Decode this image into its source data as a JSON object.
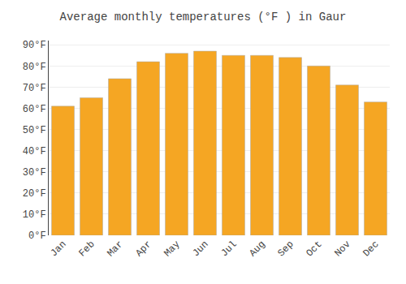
{
  "chart_data": {
    "type": "bar",
    "title": "Average monthly temperatures (°F ) in Gaur",
    "categories": [
      "Jan",
      "Feb",
      "Mar",
      "Apr",
      "May",
      "Jun",
      "Jul",
      "Aug",
      "Sep",
      "Oct",
      "Nov",
      "Dec"
    ],
    "values": [
      61,
      65,
      74,
      82,
      86,
      87,
      85,
      85,
      84,
      80,
      71,
      63
    ],
    "color": "#F5A623",
    "ylim": [
      0,
      92
    ],
    "yticks": [
      {
        "value": 0,
        "label": "0°F"
      },
      {
        "value": 10,
        "label": "10°F"
      },
      {
        "value": 20,
        "label": "20°F"
      },
      {
        "value": 30,
        "label": "30°F"
      },
      {
        "value": 40,
        "label": "40°F"
      },
      {
        "value": 50,
        "label": "50°F"
      },
      {
        "value": 60,
        "label": "60°F"
      },
      {
        "value": 70,
        "label": "70°F"
      },
      {
        "value": 80,
        "label": "80°F"
      },
      {
        "value": 90,
        "label": "90°F"
      }
    ],
    "grid": true
  }
}
